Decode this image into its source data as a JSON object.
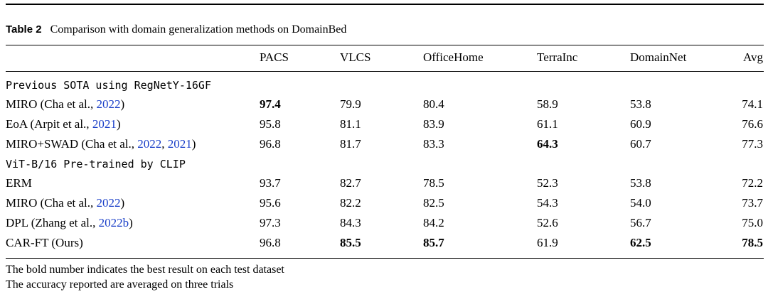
{
  "table": {
    "label": "Table 2",
    "caption": "Comparison with domain generalization methods on DomainBed",
    "columns": [
      "PACS",
      "VLCS",
      "OfficeHome",
      "TerraInc",
      "DomainNet",
      "Avg"
    ],
    "groups": [
      {
        "title": "Previous SOTA using RegNetY-16GF",
        "rows": [
          {
            "method": [
              {
                "t": "MIRO (Cha et al., "
              },
              {
                "t": "2022",
                "cite": true
              },
              {
                "t": ")"
              }
            ],
            "values": [
              "97.4",
              "79.9",
              "80.4",
              "58.9",
              "53.8",
              "74.1"
            ],
            "bold": [
              0
            ]
          },
          {
            "method": [
              {
                "t": "EoA (Arpit et al., "
              },
              {
                "t": "2021",
                "cite": true
              },
              {
                "t": ")"
              }
            ],
            "values": [
              "95.8",
              "81.1",
              "83.9",
              "61.1",
              "60.9",
              "76.6"
            ],
            "bold": []
          },
          {
            "method": [
              {
                "t": "MIRO+SWAD (Cha et al., "
              },
              {
                "t": "2022",
                "cite": true
              },
              {
                "t": ", "
              },
              {
                "t": "2021",
                "cite": true
              },
              {
                "t": ")"
              }
            ],
            "values": [
              "96.8",
              "81.7",
              "83.3",
              "64.3",
              "60.7",
              "77.3"
            ],
            "bold": [
              3
            ]
          }
        ]
      },
      {
        "title": "ViT-B/16 Pre-trained by CLIP",
        "rows": [
          {
            "method": [
              {
                "t": "ERM"
              }
            ],
            "values": [
              "93.7",
              "82.7",
              "78.5",
              "52.3",
              "53.8",
              "72.2"
            ],
            "bold": []
          },
          {
            "method": [
              {
                "t": "MIRO (Cha et al., "
              },
              {
                "t": "2022",
                "cite": true
              },
              {
                "t": ")"
              }
            ],
            "values": [
              "95.6",
              "82.2",
              "82.5",
              "54.3",
              "54.0",
              "73.7"
            ],
            "bold": []
          },
          {
            "method": [
              {
                "t": "DPL (Zhang et al., "
              },
              {
                "t": "2022b",
                "cite": true
              },
              {
                "t": ")"
              }
            ],
            "values": [
              "97.3",
              "84.3",
              "84.2",
              "52.6",
              "56.7",
              "75.0"
            ],
            "bold": []
          },
          {
            "method": [
              {
                "t": "CAR-FT (Ours)"
              }
            ],
            "values": [
              "96.8",
              "85.5",
              "85.7",
              "61.9",
              "62.5",
              "78.5"
            ],
            "bold": [
              1,
              2,
              4,
              5
            ]
          }
        ]
      }
    ],
    "notes": [
      "The bold number indicates the best result on each test dataset",
      "The accuracy reported are averaged on three trials"
    ]
  }
}
